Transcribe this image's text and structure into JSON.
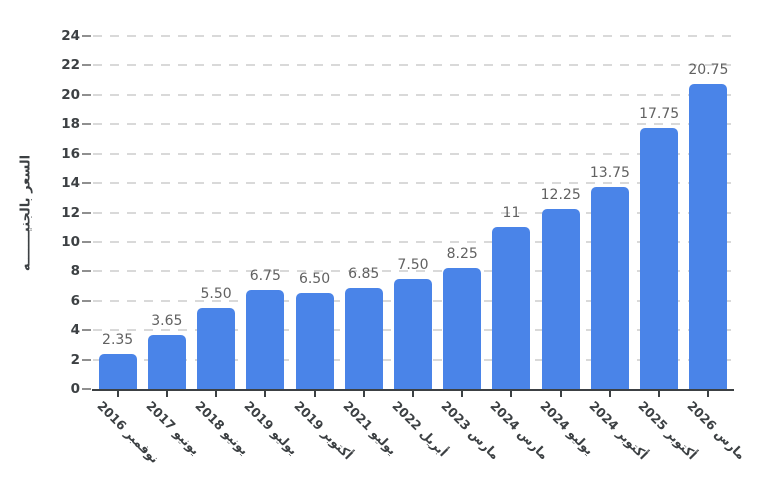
{
  "chart_data": {
    "type": "bar",
    "title": "",
    "ylabel": "السعر بالجنيـــــــه",
    "xlabel": "",
    "categories": [
      "نوفمبر 2016",
      "يونيو 2017",
      "يونيو 2018",
      "يوليو 2019",
      "أكتوبر 2019",
      "يوليو 2021",
      "أبريل 2022",
      "مارس 2023",
      "مارس 2024",
      "يوليو 2024",
      "أكتوبر 2024",
      "أكتوبر 2025",
      "مارس 2026"
    ],
    "values": [
      2.35,
      3.65,
      5.5,
      6.75,
      6.5,
      6.85,
      7.5,
      8.25,
      11,
      12.25,
      13.75,
      17.75,
      20.75
    ],
    "value_labels": [
      "2.35",
      "3.65",
      "5.50",
      "6.75",
      "6.50",
      "6.85",
      "7.50",
      "8.25",
      "11",
      "12.25",
      "13.75",
      "17.75",
      "20.75"
    ],
    "ylim": [
      0,
      24
    ],
    "yticks": [
      0,
      2,
      4,
      6,
      8,
      10,
      12,
      14,
      16,
      18,
      20,
      22,
      24
    ],
    "grid": "horizontal-dashed",
    "legend": "none",
    "colors": {
      "bar": "#4a84e8",
      "axis": "#3c4043",
      "grid": "#d9d9d9",
      "tick_label": "#3c4043",
      "value_label": "#616161"
    }
  }
}
